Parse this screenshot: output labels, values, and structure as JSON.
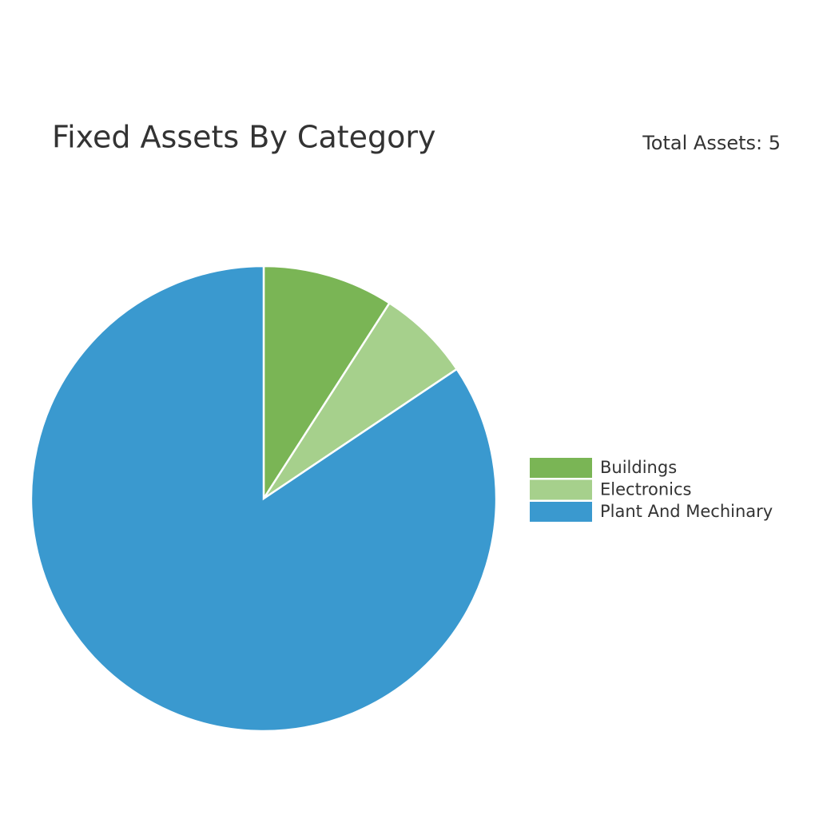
{
  "chart_data": {
    "type": "pie",
    "title": "Fixed Assets By Category",
    "subtitle": "Total Assets: 5",
    "categories": [
      "Buildings",
      "Electronics",
      "Plant And Mechinary"
    ],
    "values": [
      9.1,
      6.5,
      84.4
    ],
    "colors": [
      "#7ab555",
      "#a6d08c",
      "#3a99cf"
    ],
    "legend": "right"
  }
}
